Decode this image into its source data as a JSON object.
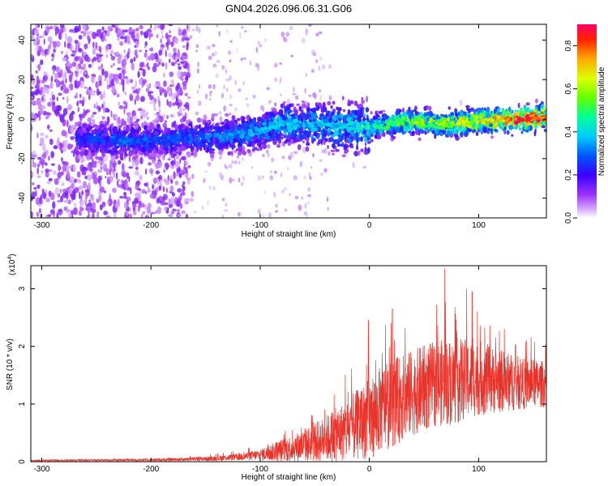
{
  "figure": {
    "title": "GN04.2026.096.06.31.G06"
  },
  "chart_data": [
    {
      "type": "heatmap",
      "title": "GN04.2026.096.06.31.G06",
      "xlabel": "Height of straight line (km)",
      "ylabel": "Frequency (Hz)",
      "xlim": [
        -310,
        162
      ],
      "ylim": [
        -50,
        48
      ],
      "x_ticks": [
        -300,
        -200,
        -100,
        0,
        100
      ],
      "x_tick_labels": [
        "-300",
        "-200",
        "-100",
        "0",
        "100"
      ],
      "y_ticks": [
        -40,
        -20,
        0,
        20,
        40
      ],
      "y_tick_labels": [
        "-40",
        "-20",
        "0",
        "20",
        "40"
      ],
      "colorbar": {
        "label": "Normalized spectral amplitude",
        "range": [
          0,
          0.9
        ],
        "ticks": [
          0,
          0.2,
          0.4,
          0.6,
          0.8
        ],
        "tick_labels": [
          "0.0",
          "0.2",
          "0.4",
          "0.6",
          "0.8"
        ]
      },
      "ridge": {
        "x": [
          -265,
          -240,
          -210,
          -180,
          -150,
          -120,
          -100,
          -80,
          -60,
          -40,
          -20,
          0,
          20,
          40,
          60,
          80,
          100,
          120,
          140,
          160
        ],
        "freq": [
          -10,
          -11,
          -11,
          -10,
          -9,
          -8,
          -6,
          -2,
          -3,
          -3,
          -4,
          -4,
          -2,
          -1,
          -2,
          -2,
          -1,
          0,
          0,
          1
        ],
        "amplitude": [
          0.25,
          0.3,
          0.3,
          0.3,
          0.33,
          0.35,
          0.38,
          0.42,
          0.38,
          0.4,
          0.42,
          0.45,
          0.55,
          0.6,
          0.62,
          0.65,
          0.7,
          0.8,
          0.9,
          0.85
        ]
      },
      "grid": false
    },
    {
      "type": "line",
      "xlabel": "Height of straight line (km)",
      "ylabel": "SNR (10 * v/v)",
      "y_scale_label": "(x10",
      "y_scale_exp": "4",
      "y_scale_close": ")",
      "xlim": [
        -310,
        162
      ],
      "ylim": [
        0,
        3.4
      ],
      "x_ticks": [
        -300,
        -200,
        -100,
        0,
        100
      ],
      "x_tick_labels": [
        "-300",
        "-200",
        "-100",
        "0",
        "100"
      ],
      "y_ticks": [
        0,
        1,
        2,
        3
      ],
      "y_tick_labels": [
        "0",
        "1",
        "2",
        "3"
      ],
      "series": [
        {
          "name": "SNR",
          "color": "#e8332b",
          "envelope_x": [
            -310,
            -200,
            -150,
            -120,
            -100,
            -80,
            -60,
            -40,
            -20,
            0,
            10,
            20,
            40,
            60,
            80,
            100,
            120,
            140,
            162
          ],
          "envelope_mean": [
            0.02,
            0.03,
            0.05,
            0.08,
            0.12,
            0.2,
            0.28,
            0.4,
            0.55,
            0.75,
            0.9,
            1.0,
            1.2,
            1.35,
            1.4,
            1.45,
            1.4,
            1.35,
            1.35
          ],
          "envelope_spread": [
            0.01,
            0.02,
            0.04,
            0.06,
            0.1,
            0.2,
            0.28,
            0.4,
            0.55,
            0.7,
            0.75,
            0.75,
            0.75,
            0.75,
            0.75,
            0.65,
            0.55,
            0.45,
            0.4
          ],
          "peaks": [
            {
              "x": -1,
              "y": 2.45
            },
            {
              "x": 21,
              "y": 2.65
            },
            {
              "x": 69,
              "y": 3.35
            },
            {
              "x": 89,
              "y": 3.0
            },
            {
              "x": 94,
              "y": 2.95
            }
          ]
        }
      ],
      "grid": false
    }
  ]
}
